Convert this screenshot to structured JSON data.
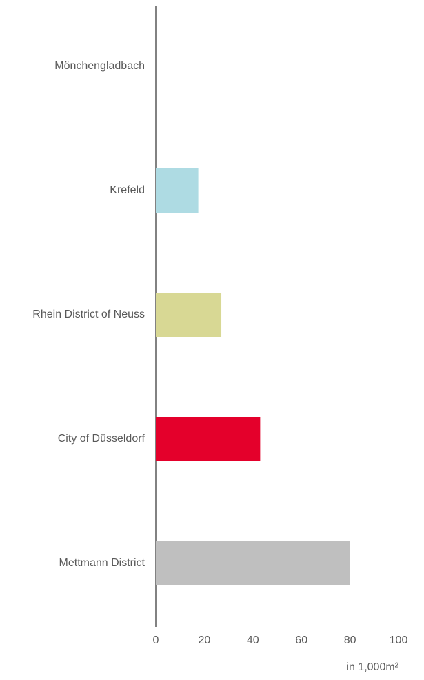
{
  "chart_data": {
    "type": "barh",
    "categories": [
      "Mönchengladbach",
      "Krefeld",
      "Rhein District of Neuss",
      "City of Düsseldorf",
      "Mettmann District"
    ],
    "values": [
      0,
      17.5,
      27,
      43,
      80
    ],
    "colors": [
      "#bfbfbf",
      "#aedbe3",
      "#d8d894",
      "#e4002b",
      "#bfbfbf"
    ],
    "xlim": [
      0,
      100
    ],
    "xticks": [
      0,
      20,
      40,
      60,
      80,
      100
    ],
    "xlabel": "in 1,000m²",
    "grid": false
  }
}
